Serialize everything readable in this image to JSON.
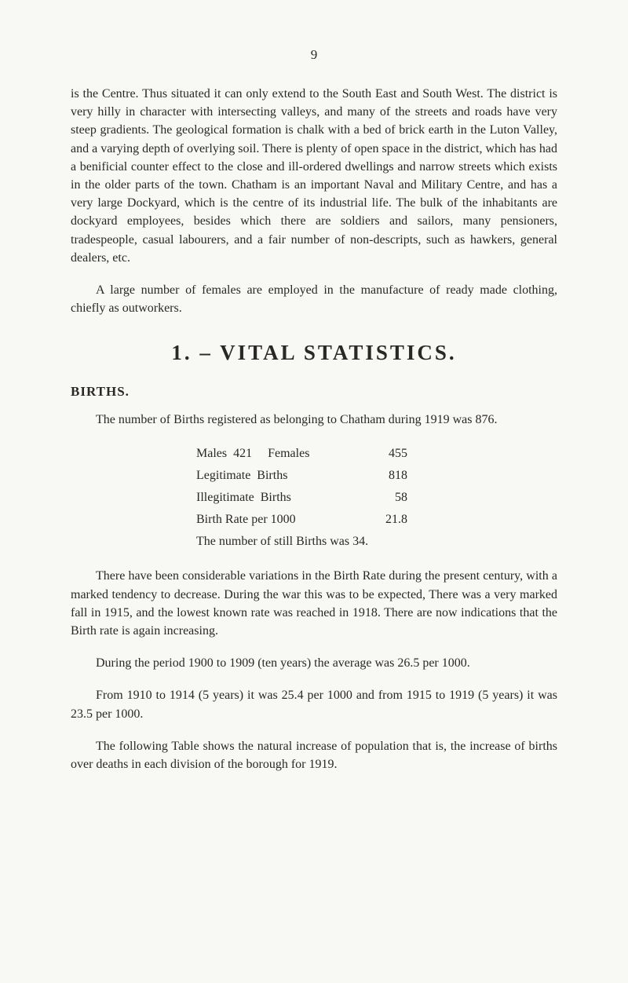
{
  "page_number": "9",
  "paragraphs": {
    "p1": "is the Centre. Thus situated it can only extend to the South East and South West. The district is very hilly in character with intersecting valleys, and many of the streets and roads have very steep gradients. The geological formation is chalk with a bed of brick earth in the Luton Valley, and a varying depth of overlying soil. There is plenty of open space in the district, which has had a benificial counter effect to the close and ill-ordered dwellings and narrow streets which exists in the older parts of the town. Chatham is an important Naval and Military Centre, and has a very large Dockyard, which is the centre of its industrial life. The bulk of the inhabitants are dockyard employees, besides which there are soldiers and sailors, many pensioners, tradespeople, casual labourers, and a fair number of non-descripts, such as hawkers, general dealers, etc.",
    "p2": "A large number of females are employed in the manufacture of ready made clothing, chiefly as outworkers.",
    "p3": "The number of Births registered as belonging to Chatham during 1919 was 876.",
    "p4": "There have been considerable variations in the Birth Rate during the present century, with a marked tendency to decrease. During the war this was to be expected, There was a very marked fall in 1915, and the lowest known rate was reached in 1918. There are now indications that the Birth rate is again increasing.",
    "p5": "During the period 1900 to 1909 (ten years) the average was 26.5 per 1000.",
    "p6": "From 1910 to 1914 (5 years) it was 25.4 per 1000 and from 1915 to 1919 (5 years) it was 23.5 per 1000.",
    "p7": "The following Table shows the natural increase of population that is, the increase of births over deaths in each division of the borough for 1919."
  },
  "section_title": "1. – VITAL STATISTICS.",
  "subheading": "BIRTHS.",
  "stats": {
    "line1_label": "Males  421     Females",
    "line1_value": "455",
    "line2_label": "Legitimate  Births",
    "line2_value": "818",
    "line3_label": "Illegitimate  Births",
    "line3_value": "58",
    "line4_label": "Birth Rate per 1000",
    "line4_value": "21.8",
    "line5": "The number of still Births was 34."
  }
}
